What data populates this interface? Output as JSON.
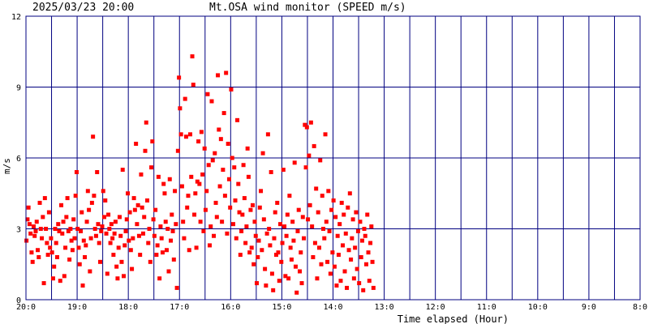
{
  "header": {
    "datetime": "2025/03/23 20:00",
    "title": "Mt.OSA wind monitor (SPEED m/s)"
  },
  "colors": {
    "background": "#ffffff",
    "frame": "#000080",
    "grid": "#000080",
    "points": "#ff0000",
    "text": "#000000"
  },
  "chart_data": {
    "type": "scatter",
    "title": "Mt.OSA wind monitor (SPEED m/s)",
    "xlabel": "Time elapsed (Hour)",
    "ylabel": "m/s",
    "ylim": [
      0,
      12
    ],
    "y_ticks": [
      "0",
      "3",
      "6",
      "9",
      "12"
    ],
    "xlim": [
      0,
      12
    ],
    "x_direction": "hours elapsed, increasing to the right (20:00 back to 8:00)",
    "x_ticks": [
      "20:0",
      "19:0",
      "18:0",
      "17:0",
      "16:0",
      "15:0",
      "14:0",
      "13:0",
      "12:0",
      "11:0",
      "10:0",
      "9:0",
      "8:0"
    ],
    "grid": true,
    "series": [
      {
        "sample_interval_hours": 0.02,
        "values": [
          2.5,
          3.4,
          3.9,
          3.2,
          2.8,
          2.0,
          1.6,
          3.1,
          2.7,
          2.9,
          3.3,
          2.1,
          1.8,
          4.1,
          3.0,
          2.6,
          3.5,
          0.7,
          4.3,
          3.0,
          2.4,
          1.9,
          3.7,
          2.2,
          2.6,
          2.0,
          0.9,
          1.4,
          3.0,
          2.4,
          1.8,
          3.2,
          2.9,
          0.8,
          4.0,
          2.8,
          3.3,
          1.0,
          2.2,
          3.5,
          4.3,
          2.9,
          1.7,
          3.0,
          2.5,
          2.1,
          3.4,
          2.6,
          4.4,
          5.4,
          3.0,
          2.2,
          1.5,
          2.9,
          3.7,
          0.6,
          2.5,
          1.8,
          2.3,
          3.3,
          4.6,
          3.8,
          1.2,
          2.6,
          4.1,
          6.9,
          4.4,
          3.0,
          2.7,
          5.4,
          3.2,
          2.4,
          1.6,
          2.9,
          3.1,
          4.6,
          3.5,
          4.2,
          2.8,
          1.1,
          3.6,
          3.0,
          2.4,
          3.2,
          2.6,
          1.9,
          2.8,
          3.3,
          1.4,
          0.9,
          2.2,
          3.5,
          2.7,
          1.6,
          5.5,
          1.0,
          2.3,
          2.9,
          3.4,
          4.5,
          2.5,
          3.7,
          2.1,
          1.3,
          2.6,
          4.3,
          3.8,
          6.6,
          3.2,
          4.0,
          2.7,
          1.9,
          5.3,
          3.9,
          2.8,
          3.5,
          6.3,
          7.5,
          4.2,
          2.4,
          3.0,
          1.6,
          5.6,
          6.7,
          3.4,
          2.7,
          3.8,
          1.9,
          2.3,
          5.2,
          0.9,
          3.1,
          2.6,
          2.0,
          4.9,
          4.5,
          3.3,
          2.1,
          3.0,
          1.2,
          5.1,
          2.5,
          3.6,
          2.9,
          1.7,
          4.6,
          3.2,
          0.5,
          6.3,
          9.4,
          8.1,
          7.0,
          4.8,
          3.3,
          2.6,
          8.5,
          6.9,
          3.9,
          4.4,
          2.1,
          7.0,
          5.2,
          10.3,
          9.1,
          3.6,
          4.5,
          2.2,
          5.0,
          6.7,
          4.9,
          3.3,
          7.1,
          5.3,
          2.9,
          6.4,
          3.8,
          4.6,
          8.7,
          5.7,
          2.3,
          3.1,
          8.4,
          5.9,
          2.7,
          6.2,
          4.1,
          3.5,
          9.5,
          7.2,
          4.8,
          6.8,
          3.3,
          5.5,
          7.9,
          4.4,
          9.6,
          2.8,
          6.6,
          5.1,
          3.9,
          8.9,
          6.0,
          3.2,
          5.6,
          4.2,
          2.6,
          7.6,
          4.9,
          3.7,
          1.9,
          2.9,
          3.6,
          5.7,
          4.3,
          2.4,
          3.1,
          6.4,
          5.2,
          2.0,
          3.8,
          2.2,
          4.0,
          1.5,
          3.3,
          2.7,
          0.7,
          1.8,
          2.5,
          3.9,
          4.6,
          2.1,
          6.2,
          3.4,
          1.3,
          0.6,
          2.8,
          7.0,
          3.0,
          2.3,
          5.4,
          1.1,
          0.4,
          2.6,
          3.7,
          1.9,
          4.1,
          2.0,
          0.8,
          3.2,
          1.6,
          2.4,
          5.5,
          3.1,
          1.0,
          2.7,
          3.6,
          0.9,
          4.4,
          2.2,
          1.7,
          3.3,
          2.5,
          5.8,
          1.4,
          0.3,
          2.9,
          3.8,
          1.2,
          2.0,
          0.7,
          3.5,
          2.6,
          7.4,
          5.6,
          7.3,
          3.4,
          6.1,
          4.0,
          7.5,
          3.1,
          1.8,
          6.5,
          2.4,
          4.7,
          0.9,
          3.7,
          2.2,
          5.9,
          1.5,
          4.4,
          3.0,
          2.6,
          7.0,
          3.3,
          1.6,
          4.6,
          2.9,
          1.1,
          3.8,
          2.0,
          4.2,
          1.4,
          3.5,
          0.6,
          2.7,
          1.9,
          3.2,
          0.8,
          4.1,
          2.3,
          3.6,
          1.2,
          2.8,
          0.5,
          3.9,
          2.1,
          4.5,
          1.7,
          2.6,
          3.4,
          0.9,
          2.2,
          3.7,
          1.3,
          2.9,
          0.7,
          3.3,
          1.8,
          2.5,
          0.4,
          3.0,
          2.7,
          1.5,
          3.6,
          2.0,
          0.8,
          2.4,
          3.1,
          1.6,
          0.5
        ]
      }
    ]
  }
}
